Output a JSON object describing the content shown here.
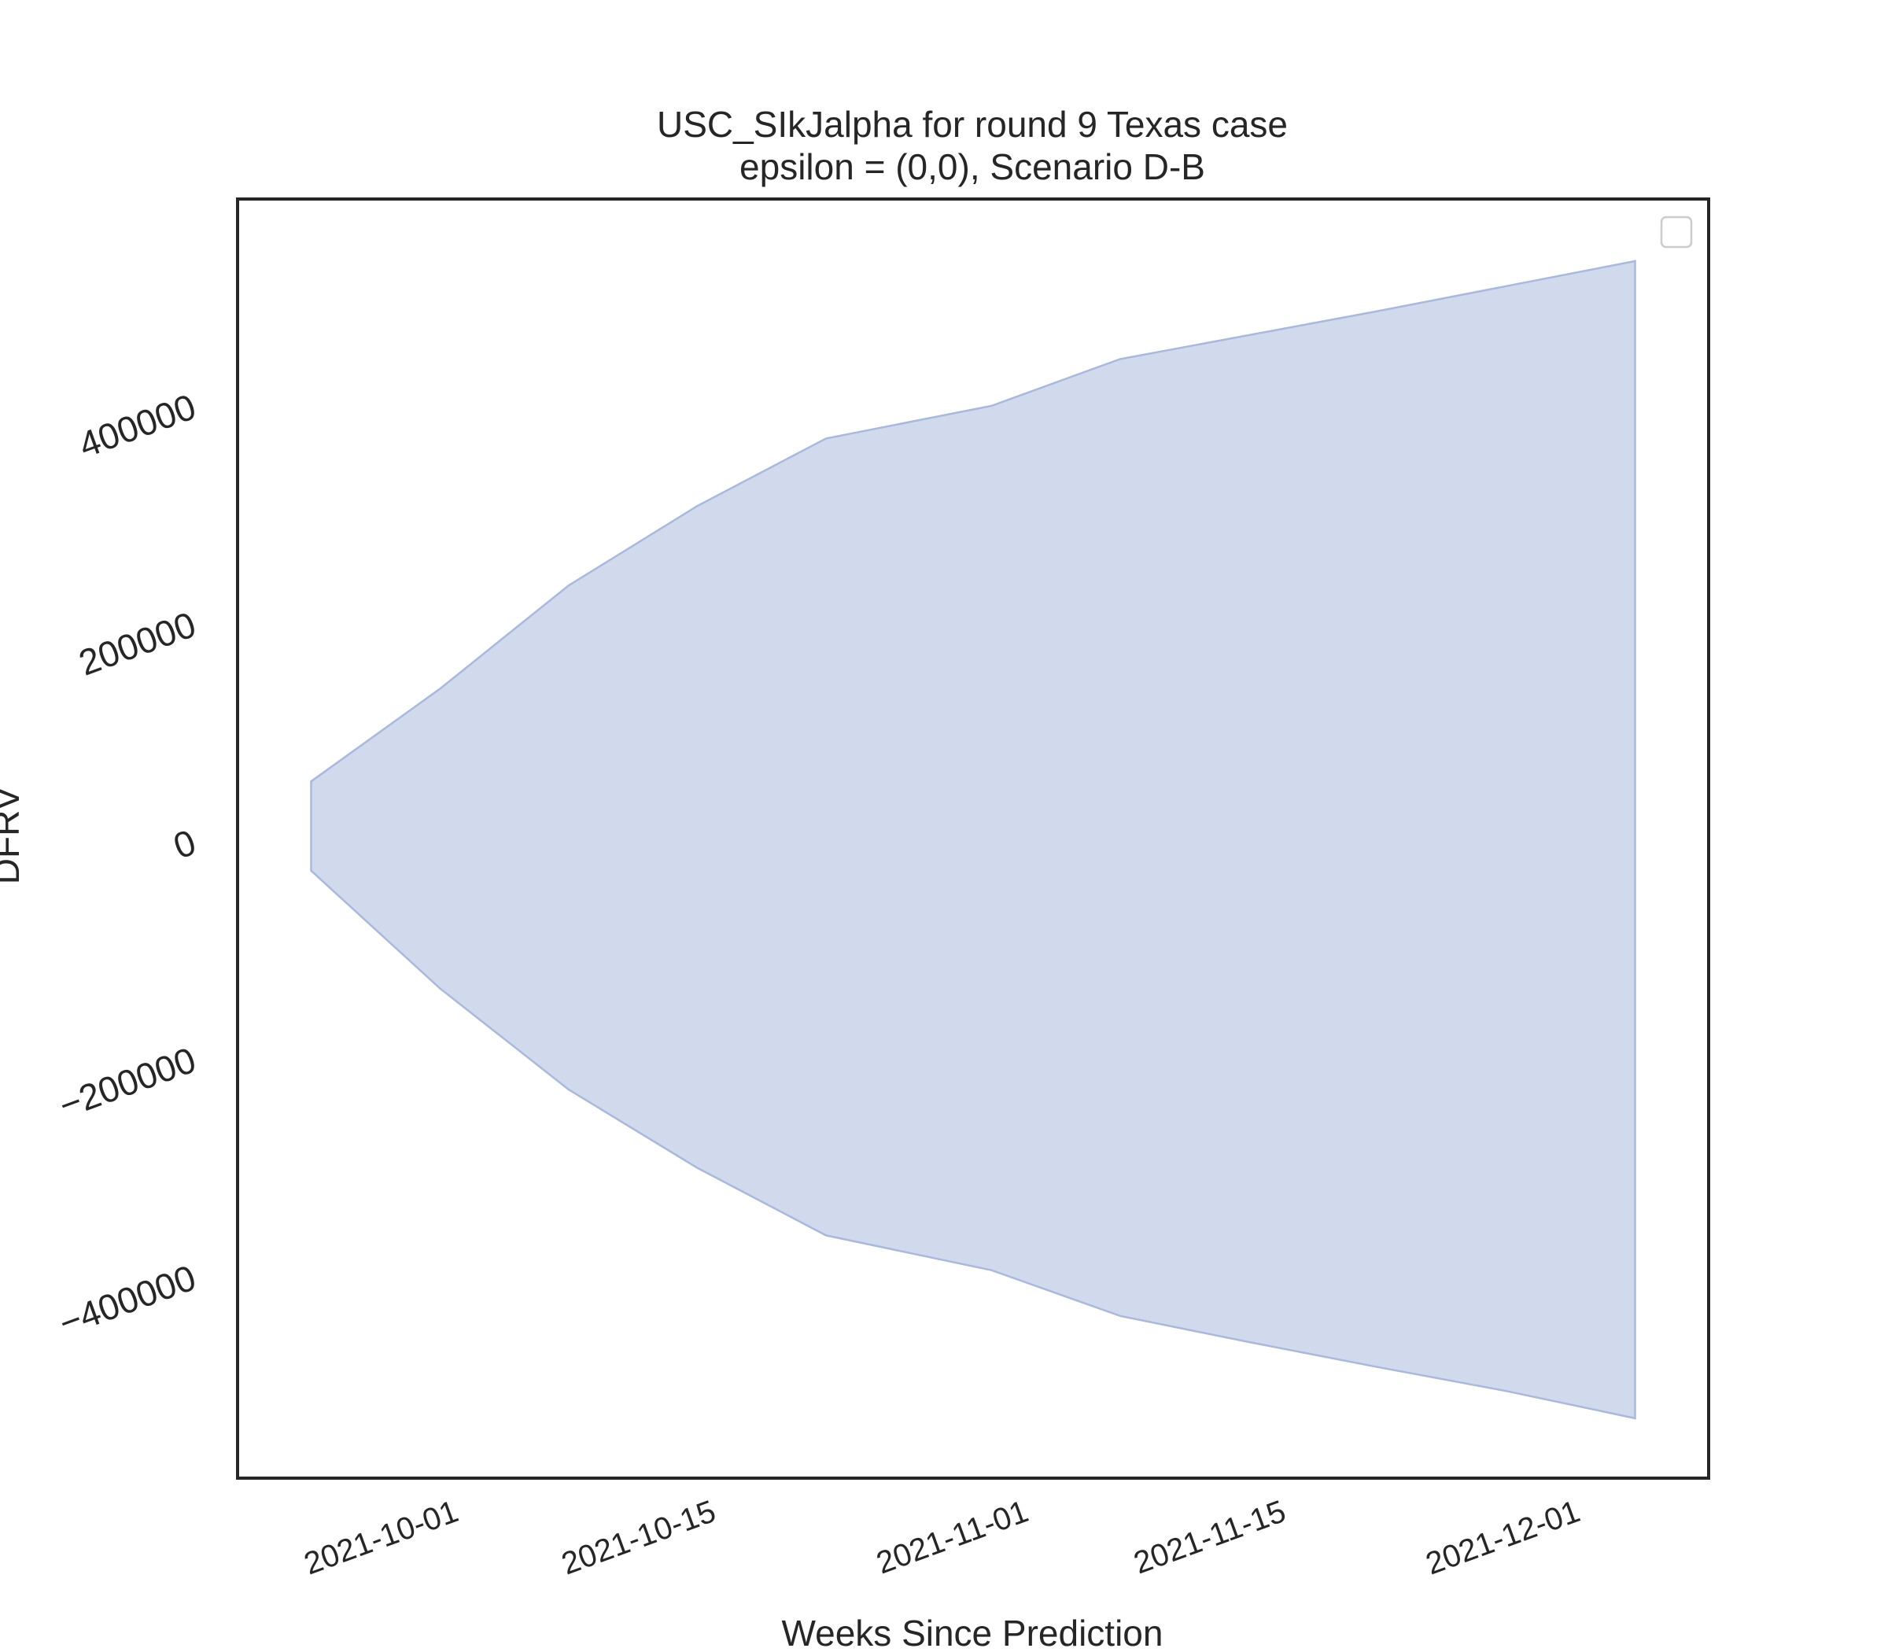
{
  "chart_data": {
    "type": "area",
    "title": "USC_SIkJalpha for round 9 Texas case",
    "subtitle": "epsilon = (0,0), Scenario D-B",
    "xlabel": "Weeks Since Prediction",
    "ylabel": "DFRV",
    "x_ticks": [
      "2021-10-01",
      "2021-10-15",
      "2021-11-01",
      "2021-11-15",
      "2021-12-01"
    ],
    "y_ticks": [
      -400000,
      -200000,
      0,
      200000,
      400000
    ],
    "xlim": [
      "2021-09-20",
      "2021-12-09"
    ],
    "ylim": [
      -585000,
      590000
    ],
    "grid": false,
    "legend": {
      "placement": "upper-right",
      "entries": []
    },
    "fill_color": "#b8c6e3",
    "fill_opacity": 0.65,
    "edge_color": "#a9b9dc",
    "series": [
      {
        "x": [
          "2021-09-24",
          "2021-10-01",
          "2021-10-08",
          "2021-10-15",
          "2021-10-22",
          "2021-10-31",
          "2021-11-07",
          "2021-11-14",
          "2021-11-21",
          "2021-11-28",
          "2021-12-05"
        ],
        "upper": [
          55000,
          140000,
          235000,
          308000,
          370000,
          400000,
          443000,
          465000,
          487000,
          510000,
          533000
        ],
        "lower": [
          -27000,
          -135000,
          -228000,
          -300000,
          -362000,
          -394000,
          -436000,
          -460000,
          -483000,
          -505000,
          -530000
        ]
      }
    ]
  }
}
